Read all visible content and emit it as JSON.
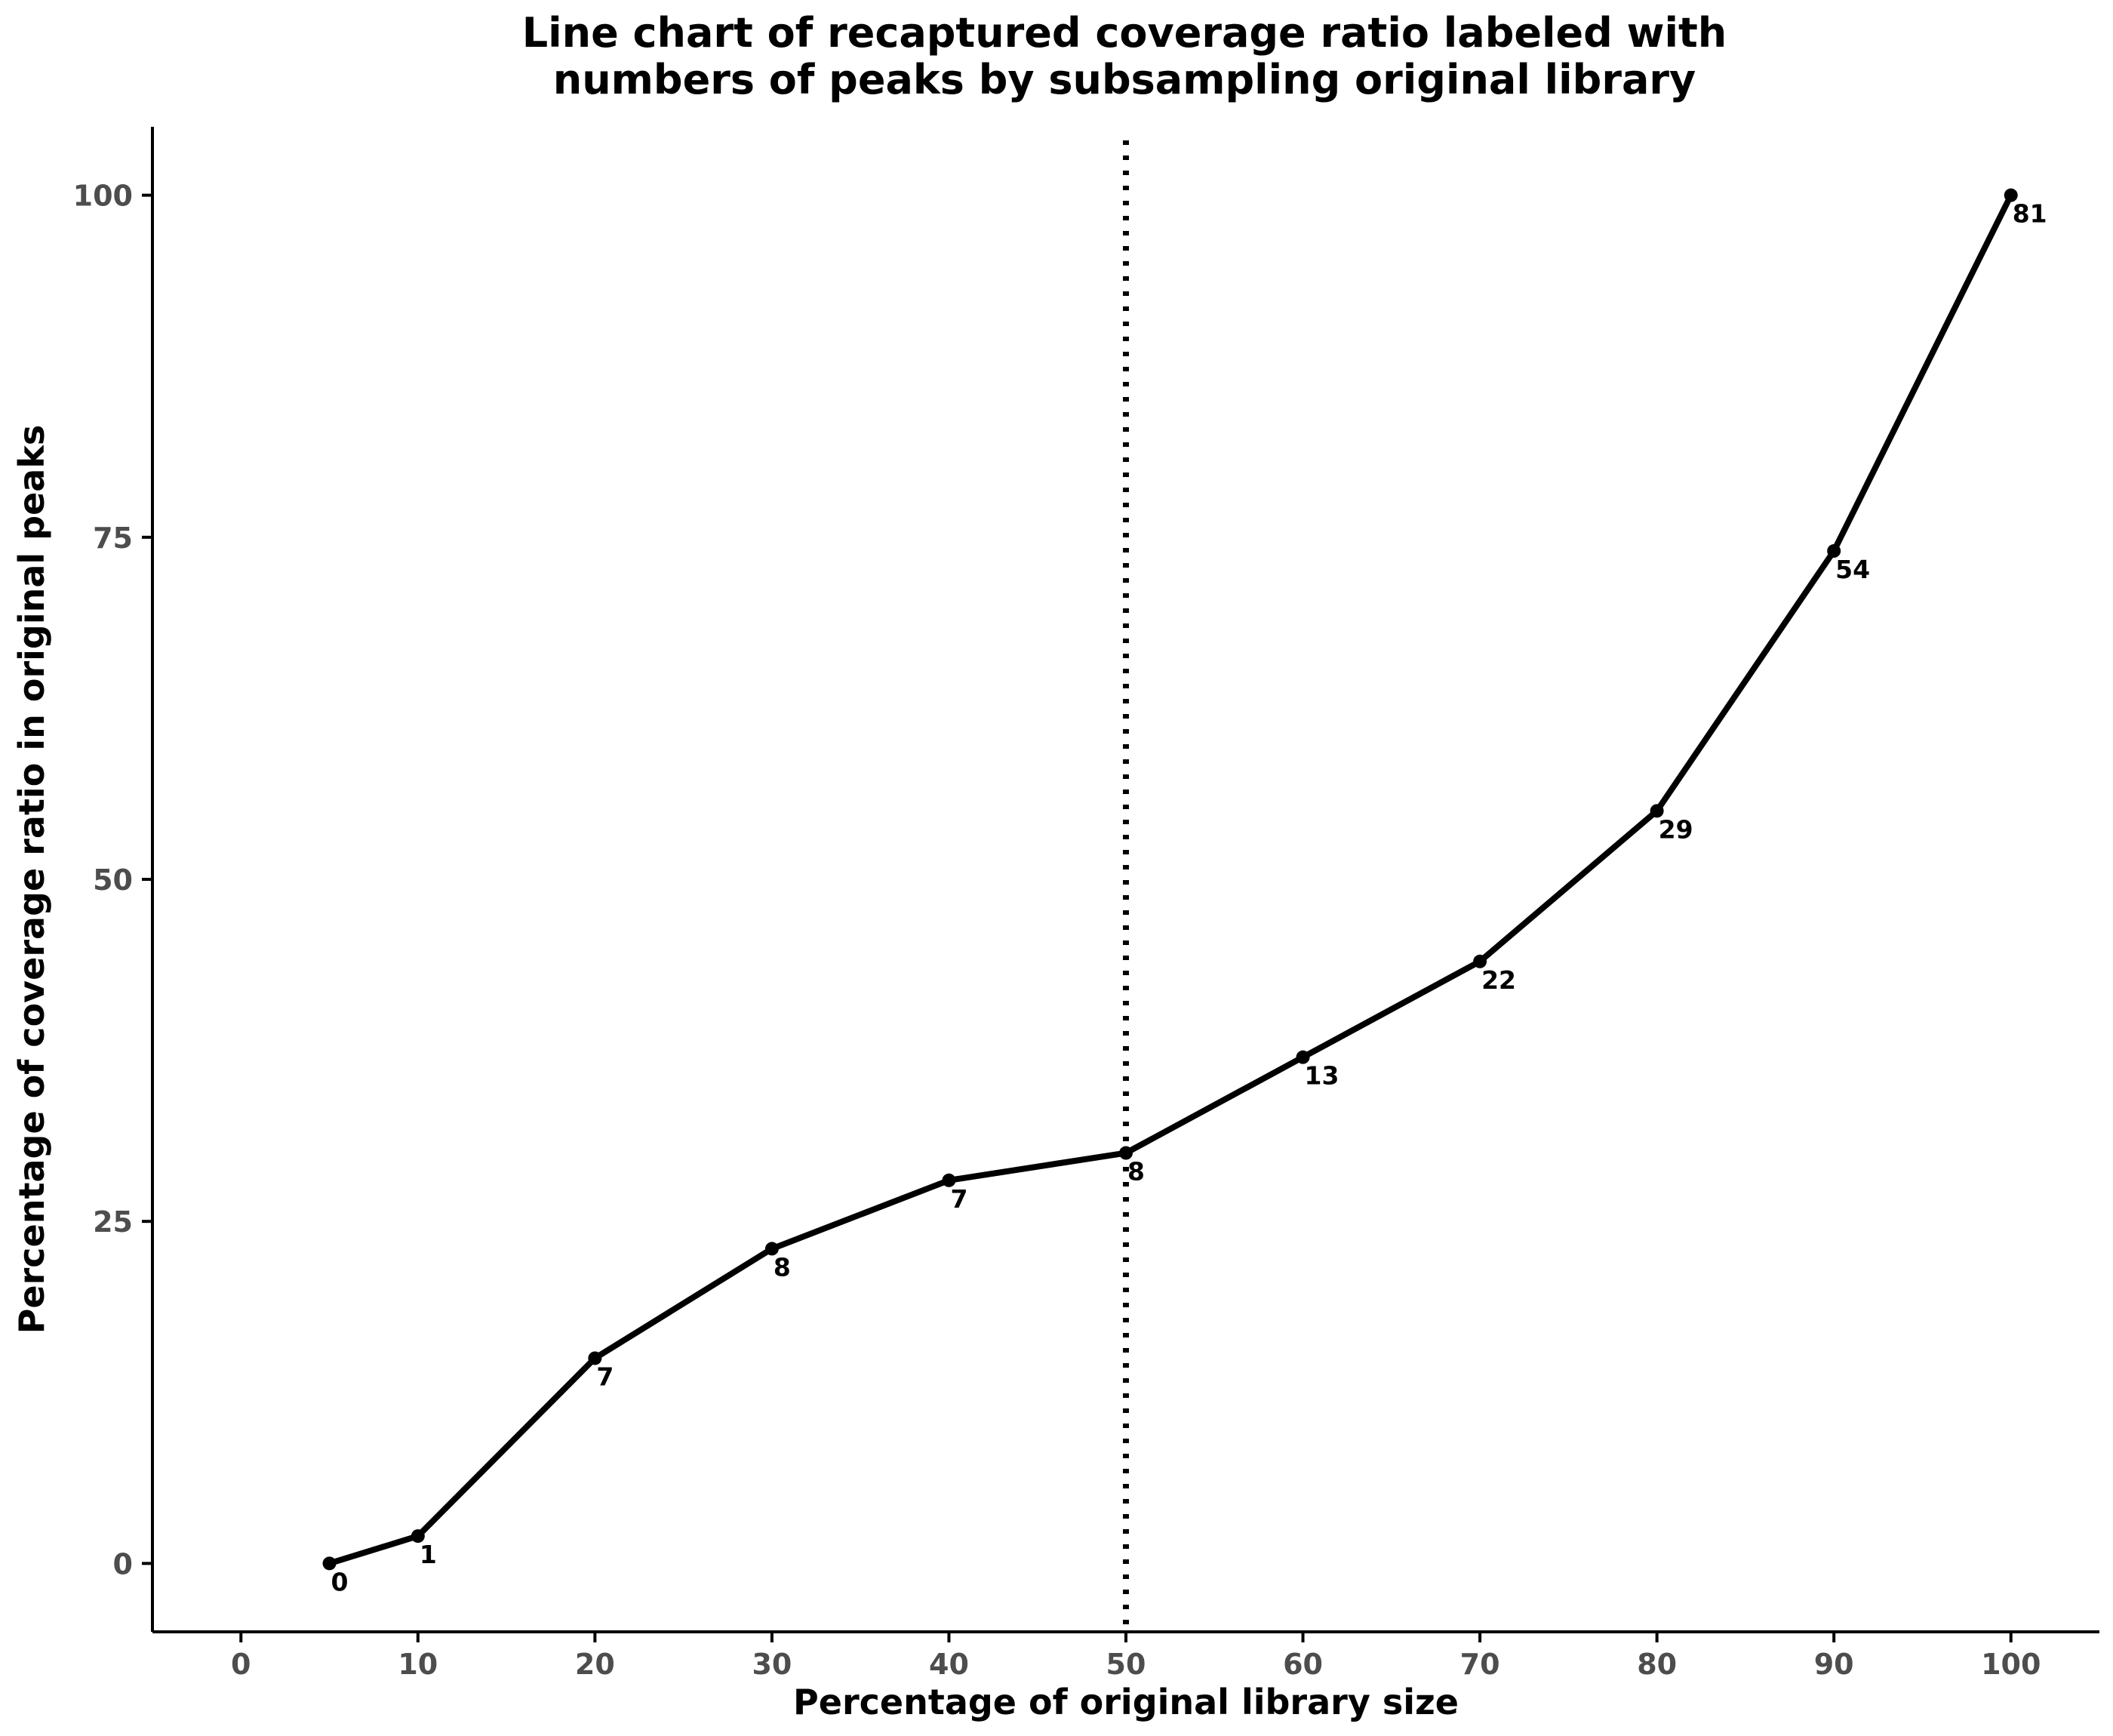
{
  "chart_data": {
    "type": "line",
    "title": "Line chart of recaptured coverage ratio labeled with\nnumbers of peaks by subsampling original library",
    "xlabel": "Percentage of original library size",
    "ylabel": "Percentage of coverage ratio in original peaks",
    "xlim": [
      -5,
      105
    ],
    "ylim": [
      -5,
      105
    ],
    "x_ticks": [
      0,
      10,
      20,
      30,
      40,
      50,
      60,
      70,
      80,
      90,
      100
    ],
    "y_ticks": [
      0,
      25,
      50,
      75,
      100
    ],
    "grid": false,
    "legend": "none",
    "vline": {
      "x": 50,
      "style": "dotted"
    },
    "line_color": "#000000",
    "series": [
      {
        "x": [
          5,
          10,
          20,
          30,
          40,
          50,
          60,
          70,
          80,
          90,
          100
        ],
        "y": [
          0,
          2,
          15,
          23,
          28,
          30,
          37,
          44,
          55,
          74,
          100
        ],
        "labels": [
          "0",
          "1",
          "7",
          "8",
          "7",
          "8",
          "13",
          "22",
          "29",
          "54",
          "81"
        ]
      }
    ]
  }
}
